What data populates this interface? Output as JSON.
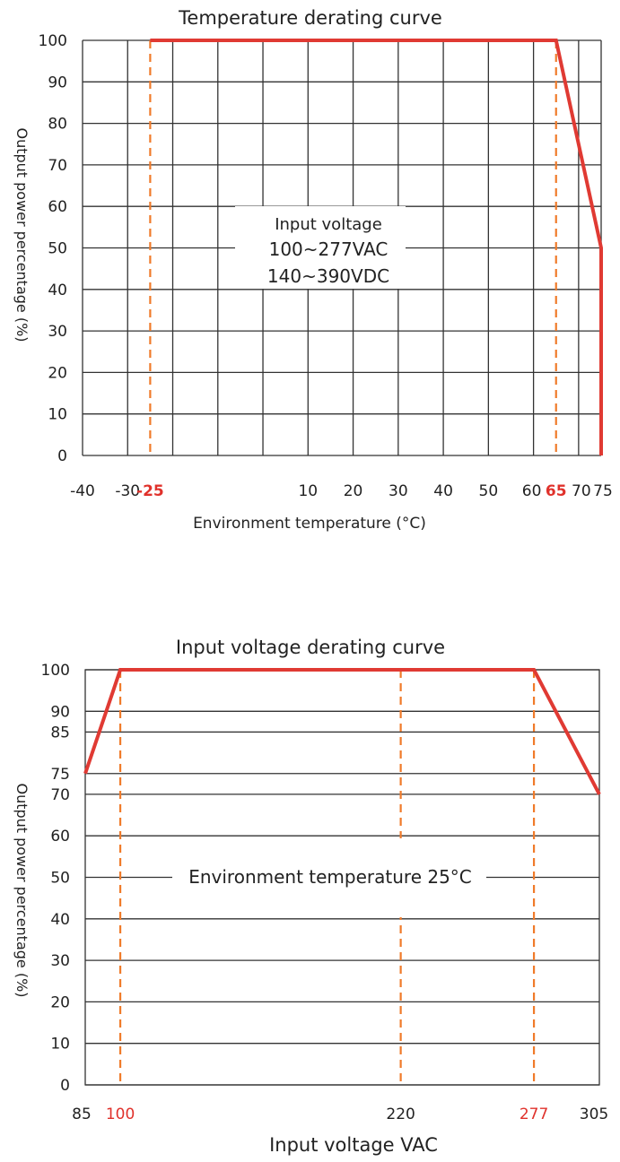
{
  "colors": {
    "curve": "#e03a33",
    "guide": "#f07b2a",
    "grid": "#333333",
    "highlight": "#e0312b"
  },
  "chart_data": [
    {
      "type": "line",
      "title": "Temperature derating curve",
      "xlabel": "Environment temperature (°C)",
      "ylabel": "Output power percentage (%)",
      "xlim": [
        -40,
        75
      ],
      "ylim": [
        0,
        100
      ],
      "xticks": [
        {
          "value": -40,
          "label": "-40",
          "highlight": false
        },
        {
          "value": -30,
          "label": "-30",
          "highlight": false
        },
        {
          "value": -25,
          "label": "-25",
          "highlight": true
        },
        {
          "value": 10,
          "label": "10",
          "highlight": false
        },
        {
          "value": 20,
          "label": "20",
          "highlight": false
        },
        {
          "value": 30,
          "label": "30",
          "highlight": false
        },
        {
          "value": 40,
          "label": "40",
          "highlight": false
        },
        {
          "value": 50,
          "label": "50",
          "highlight": false
        },
        {
          "value": 60,
          "label": "60",
          "highlight": false
        },
        {
          "value": 65,
          "label": "65",
          "highlight": true
        },
        {
          "value": 70,
          "label": "70",
          "highlight": false
        },
        {
          "value": 75,
          "label": "75",
          "highlight": false
        }
      ],
      "yticks": [
        0,
        10,
        20,
        30,
        40,
        50,
        60,
        70,
        80,
        90,
        100
      ],
      "vgrid": [
        -40,
        -30,
        -20,
        -10,
        0,
        10,
        20,
        30,
        40,
        50,
        60,
        70,
        75
      ],
      "dashed_guides": [
        -25,
        65
      ],
      "series": [
        {
          "x": [
            -25,
            65,
            75,
            75
          ],
          "y": [
            100,
            100,
            50,
            0
          ]
        }
      ],
      "annotation": [
        "Input voltage",
        "100~277VAC",
        "140~390VDC"
      ]
    },
    {
      "type": "line",
      "title": "Input voltage derating curve",
      "xlabel": "Input voltage VAC",
      "ylabel": "Output power percentage (%)",
      "xlim": [
        85,
        305
      ],
      "ylim": [
        0,
        100
      ],
      "xticks": [
        {
          "value": 85,
          "label": "85",
          "highlight": false
        },
        {
          "value": 100,
          "label": "100",
          "highlight": true
        },
        {
          "value": 220,
          "label": "220",
          "highlight": false
        },
        {
          "value": 277,
          "label": "277",
          "highlight": true
        },
        {
          "value": 305,
          "label": "305",
          "highlight": false
        }
      ],
      "yticks": [
        0,
        10,
        20,
        30,
        40,
        50,
        60,
        70,
        75,
        85,
        90,
        100
      ],
      "dashed_guides": [
        100,
        220,
        277
      ],
      "series": [
        {
          "x": [
            85,
            100,
            277,
            305
          ],
          "y": [
            75,
            100,
            100,
            70
          ]
        }
      ],
      "annotation": [
        "Environment temperature 25°C"
      ]
    }
  ]
}
